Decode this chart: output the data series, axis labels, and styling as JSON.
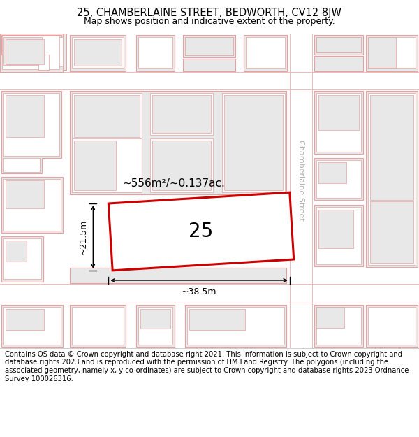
{
  "title": "25, CHAMBERLAINE STREET, BEDWORTH, CV12 8JW",
  "subtitle": "Map shows position and indicative extent of the property.",
  "footer": "Contains OS data © Crown copyright and database right 2021. This information is subject to Crown copyright and database rights 2023 and is reproduced with the permission of HM Land Registry. The polygons (including the associated geometry, namely x, y co-ordinates) are subject to Crown copyright and database rights 2023 Ordnance Survey 100026316.",
  "building_fill": "#e8e8e8",
  "building_edge": "#e8a0a0",
  "road_line": "#f0b0b0",
  "highlighted_edge": "#cc0000",
  "street_label": "Chamberlaine Street",
  "property_label": "25",
  "area_label": "~556m²/~0.137ac.",
  "width_label": "~38.5m",
  "height_label": "~21.5m",
  "title_fontsize": 10.5,
  "subtitle_fontsize": 9,
  "footer_fontsize": 7.2
}
